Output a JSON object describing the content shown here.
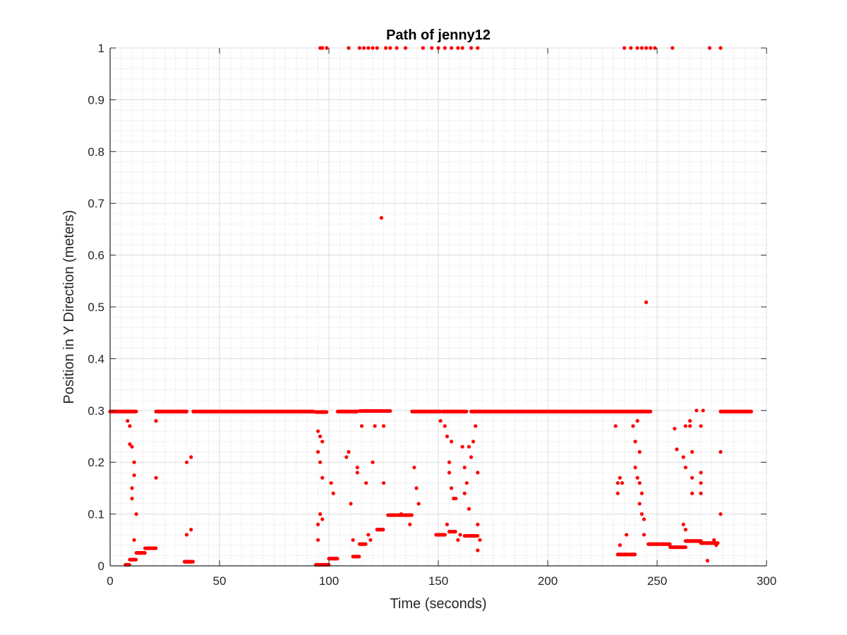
{
  "chart_data": {
    "type": "scatter",
    "title": "Path of jenny12",
    "xlabel": "Time (seconds)",
    "ylabel": "Position in Y Direction (meters)",
    "xlim": [
      0,
      300
    ],
    "ylim": [
      0,
      1
    ],
    "xticks": [
      "0",
      "50",
      "100",
      "150",
      "200",
      "250",
      "300"
    ],
    "yticks": [
      "0",
      "0.1",
      "0.2",
      "0.3",
      "0.4",
      "0.5",
      "0.6",
      "0.7",
      "0.8",
      "0.9",
      "1"
    ],
    "grid": true,
    "minor_grid": true,
    "marker_color": "#ff0000",
    "series": [
      {
        "segments": [
          {
            "x0": 0,
            "x1": 12,
            "y": 0.298
          },
          {
            "x0": 21,
            "x1": 35,
            "y": 0.298
          },
          {
            "x0": 38,
            "x1": 93,
            "y": 0.298
          },
          {
            "x0": 94,
            "x1": 99,
            "y": 0.297
          },
          {
            "x0": 104,
            "x1": 113,
            "y": 0.298
          },
          {
            "x0": 114,
            "x1": 128,
            "y": 0.299
          },
          {
            "x0": 138,
            "x1": 151,
            "y": 0.298
          },
          {
            "x0": 152,
            "x1": 163,
            "y": 0.298
          },
          {
            "x0": 165,
            "x1": 234,
            "y": 0.298
          },
          {
            "x0": 234,
            "x1": 247,
            "y": 0.298
          },
          {
            "x0": 279,
            "x1": 293,
            "y": 0.298
          },
          {
            "x0": 7,
            "x1": 9,
            "y": 0.002
          },
          {
            "x0": 9,
            "x1": 12,
            "y": 0.012
          },
          {
            "x0": 12,
            "x1": 16,
            "y": 0.025
          },
          {
            "x0": 16,
            "x1": 21,
            "y": 0.034
          },
          {
            "x0": 34,
            "x1": 38,
            "y": 0.008
          },
          {
            "x0": 94,
            "x1": 100,
            "y": 0.002
          },
          {
            "x0": 100,
            "x1": 104,
            "y": 0.014
          },
          {
            "x0": 111,
            "x1": 114,
            "y": 0.018
          },
          {
            "x0": 114,
            "x1": 117,
            "y": 0.042
          },
          {
            "x0": 122,
            "x1": 125,
            "y": 0.07
          },
          {
            "x0": 127,
            "x1": 138,
            "y": 0.098
          },
          {
            "x0": 149,
            "x1": 153,
            "y": 0.06
          },
          {
            "x0": 155,
            "x1": 158,
            "y": 0.066
          },
          {
            "x0": 162,
            "x1": 168,
            "y": 0.058
          },
          {
            "x0": 232,
            "x1": 236,
            "y": 0.022
          },
          {
            "x0": 236,
            "x1": 240,
            "y": 0.022
          },
          {
            "x0": 246,
            "x1": 256,
            "y": 0.042
          },
          {
            "x0": 256,
            "x1": 263,
            "y": 0.036
          },
          {
            "x0": 263,
            "x1": 270,
            "y": 0.048
          },
          {
            "x0": 270,
            "x1": 278,
            "y": 0.044
          }
        ],
        "points": [
          [
            97,
            1
          ],
          [
            96,
            1
          ],
          [
            99,
            1
          ],
          [
            109,
            1
          ],
          [
            114,
            1
          ],
          [
            116,
            1
          ],
          [
            118,
            1
          ],
          [
            120,
            1
          ],
          [
            122,
            1
          ],
          [
            126,
            1
          ],
          [
            128,
            1
          ],
          [
            131,
            1
          ],
          [
            135,
            1
          ],
          [
            143,
            1
          ],
          [
            147,
            1
          ],
          [
            150,
            1
          ],
          [
            153,
            1
          ],
          [
            156,
            1
          ],
          [
            159,
            1
          ],
          [
            161,
            1
          ],
          [
            165,
            1
          ],
          [
            168,
            1
          ],
          [
            235,
            1
          ],
          [
            238,
            1
          ],
          [
            241,
            1
          ],
          [
            243,
            1
          ],
          [
            245,
            1
          ],
          [
            247,
            1
          ],
          [
            249,
            1
          ],
          [
            257,
            1
          ],
          [
            274,
            1
          ],
          [
            279,
            1
          ],
          [
            124,
            0.672
          ],
          [
            245,
            0.509
          ],
          [
            8,
            0.28
          ],
          [
            9,
            0.27
          ],
          [
            9,
            0.235
          ],
          [
            10,
            0.23
          ],
          [
            11,
            0.2
          ],
          [
            11,
            0.175
          ],
          [
            10,
            0.15
          ],
          [
            10,
            0.13
          ],
          [
            12,
            0.1
          ],
          [
            11,
            0.05
          ],
          [
            21,
            0.17
          ],
          [
            21,
            0.28
          ],
          [
            35,
            0.2
          ],
          [
            37,
            0.21
          ],
          [
            35,
            0.06
          ],
          [
            37,
            0.07
          ],
          [
            95,
            0.26
          ],
          [
            96,
            0.25
          ],
          [
            97,
            0.24
          ],
          [
            95,
            0.22
          ],
          [
            96,
            0.2
          ],
          [
            97,
            0.17
          ],
          [
            96,
            0.1
          ],
          [
            97,
            0.09
          ],
          [
            95,
            0.08
          ],
          [
            95,
            0.05
          ],
          [
            101,
            0.16
          ],
          [
            102,
            0.14
          ],
          [
            109,
            0.22
          ],
          [
            108,
            0.21
          ],
          [
            110,
            0.12
          ],
          [
            111,
            0.05
          ],
          [
            113,
            0.18
          ],
          [
            113,
            0.19
          ],
          [
            115,
            0.27
          ],
          [
            117,
            0.16
          ],
          [
            118,
            0.06
          ],
          [
            119,
            0.05
          ],
          [
            120,
            0.2
          ],
          [
            121,
            0.27
          ],
          [
            125,
            0.27
          ],
          [
            125,
            0.16
          ],
          [
            133,
            0.1
          ],
          [
            137,
            0.08
          ],
          [
            140,
            0.15
          ],
          [
            139,
            0.19
          ],
          [
            141,
            0.12
          ],
          [
            151,
            0.28
          ],
          [
            153,
            0.27
          ],
          [
            154,
            0.25
          ],
          [
            156,
            0.24
          ],
          [
            155,
            0.2
          ],
          [
            155,
            0.18
          ],
          [
            156,
            0.15
          ],
          [
            157,
            0.13
          ],
          [
            154,
            0.08
          ],
          [
            153,
            0.06
          ],
          [
            158,
            0.13
          ],
          [
            159,
            0.05
          ],
          [
            160,
            0.06
          ],
          [
            161,
            0.23
          ],
          [
            162,
            0.19
          ],
          [
            163,
            0.16
          ],
          [
            162,
            0.14
          ],
          [
            164,
            0.11
          ],
          [
            164,
            0.23
          ],
          [
            165,
            0.21
          ],
          [
            166,
            0.24
          ],
          [
            167,
            0.27
          ],
          [
            168,
            0.18
          ],
          [
            168,
            0.08
          ],
          [
            169,
            0.05
          ],
          [
            168,
            0.03
          ],
          [
            231,
            0.27
          ],
          [
            232,
            0.16
          ],
          [
            233,
            0.17
          ],
          [
            232,
            0.14
          ],
          [
            234,
            0.16
          ],
          [
            233,
            0.04
          ],
          [
            236,
            0.06
          ],
          [
            239,
            0.27
          ],
          [
            241,
            0.28
          ],
          [
            240,
            0.24
          ],
          [
            240,
            0.19
          ],
          [
            241,
            0.17
          ],
          [
            242,
            0.22
          ],
          [
            242,
            0.16
          ],
          [
            243,
            0.14
          ],
          [
            242,
            0.12
          ],
          [
            243,
            0.1
          ],
          [
            244,
            0.09
          ],
          [
            244,
            0.06
          ],
          [
            262,
            0.21
          ],
          [
            263,
            0.19
          ],
          [
            262,
            0.08
          ],
          [
            263,
            0.07
          ],
          [
            265,
            0.28
          ],
          [
            265,
            0.27
          ],
          [
            266,
            0.22
          ],
          [
            266,
            0.17
          ],
          [
            266,
            0.14
          ],
          [
            268,
            0.3
          ],
          [
            270,
            0.18
          ],
          [
            270,
            0.16
          ],
          [
            270,
            0.27
          ],
          [
            270,
            0.14
          ],
          [
            271,
            0.3
          ],
          [
            273,
            0.01
          ],
          [
            279,
            0.22
          ],
          [
            279,
            0.1
          ],
          [
            259,
            0.225
          ],
          [
            258,
            0.265
          ],
          [
            263,
            0.27
          ],
          [
            276,
            0.05
          ],
          [
            277,
            0.04
          ]
        ]
      }
    ]
  }
}
